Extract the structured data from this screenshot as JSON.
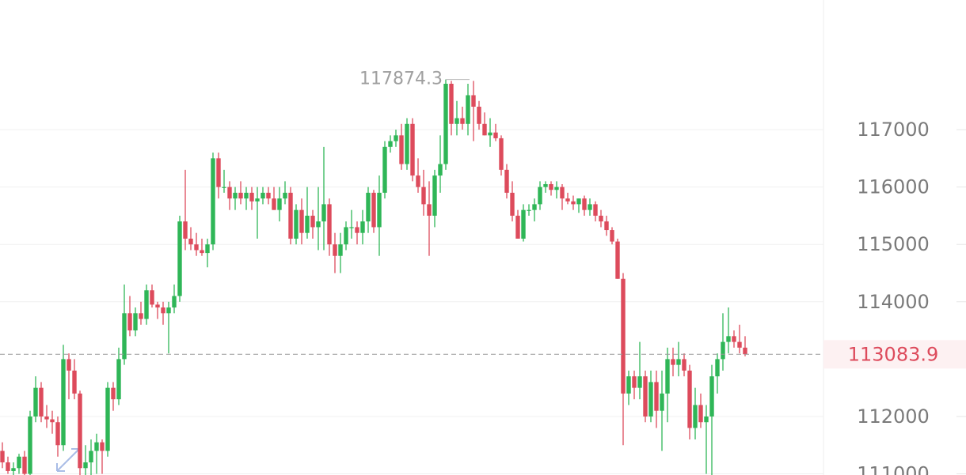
{
  "chart_data": {
    "type": "candlestick",
    "open": [
      111400,
      111200,
      111050,
      111100,
      111300,
      111000,
      112000,
      112500,
      112000,
      111950,
      111900,
      111500,
      113000,
      112800,
      112400,
      111100,
      111200,
      111400,
      111550,
      111400,
      112500,
      112300,
      113000,
      113800,
      113500,
      113800,
      113700,
      114200,
      113950,
      113900,
      113800,
      113900,
      114100,
      115400,
      115100,
      115000,
      114900,
      114850,
      115000,
      116500,
      116000,
      116000,
      115800,
      115900,
      115800,
      115900,
      115750,
      115800,
      115900,
      115800,
      115600,
      115800,
      115900,
      115100,
      115600,
      115200,
      115500,
      115300,
      115400,
      115700,
      115000,
      114800,
      115000,
      115300,
      115300,
      115200,
      115400,
      115900,
      115300,
      115900,
      116700,
      116800,
      116900,
      116400,
      117100,
      116200,
      116000,
      115700,
      115500,
      116200,
      116400,
      117800,
      117100,
      117200,
      117100,
      117600,
      117400,
      117100,
      116900,
      116950,
      116850,
      116300,
      115900,
      115500,
      115100,
      115600,
      115600,
      115700,
      116000,
      116050,
      115950,
      116000,
      115800,
      115750,
      115700,
      115800,
      115600,
      115700,
      115500,
      115400,
      115250,
      115050,
      114400,
      112400,
      112700,
      112500,
      112700,
      112000,
      112600,
      112100,
      112400,
      113000,
      112900,
      113000,
      112800,
      111800,
      112200,
      111900,
      112000,
      112700,
      113000,
      113300,
      113400,
      113300,
      113200
    ],
    "high": [
      111550,
      111300,
      111200,
      111350,
      111400,
      112100,
      112700,
      112600,
      112200,
      112100,
      112000,
      113250,
      113100,
      113000,
      112450,
      111500,
      111600,
      111700,
      111600,
      112600,
      112600,
      113200,
      114300,
      114100,
      113900,
      114000,
      114300,
      114300,
      114000,
      114000,
      114000,
      114300,
      115500,
      116300,
      115300,
      115200,
      115100,
      115100,
      116600,
      116600,
      116300,
      116100,
      116000,
      116100,
      116000,
      116000,
      116000,
      116000,
      116000,
      116000,
      116000,
      116100,
      116000,
      115700,
      115800,
      116000,
      115600,
      116000,
      116700,
      115800,
      115200,
      115200,
      115400,
      115600,
      115400,
      115600,
      116000,
      115950,
      116200,
      116800,
      116900,
      117000,
      117100,
      117200,
      117200,
      116500,
      116300,
      116100,
      116300,
      116900,
      117874.3,
      117850,
      117500,
      117400,
      117800,
      117850,
      117500,
      117300,
      117200,
      117100,
      116900,
      116400,
      116100,
      115600,
      115700,
      115700,
      115800,
      116100,
      116100,
      116100,
      116100,
      116050,
      115900,
      115850,
      115800,
      115850,
      115800,
      115750,
      115600,
      115500,
      115300,
      115100,
      114500,
      112800,
      112800,
      113300,
      112800,
      112800,
      112800,
      112800,
      113200,
      113200,
      113300,
      113100,
      112900,
      112500,
      112400,
      112200,
      112900,
      113100,
      113800,
      113900,
      113500,
      113600,
      113400
    ],
    "low": [
      111100,
      111000,
      110950,
      111000,
      110900,
      110950,
      111900,
      111900,
      111800,
      111700,
      111300,
      111400,
      112300,
      112300,
      110800,
      110900,
      110900,
      111000,
      111000,
      111300,
      112100,
      112200,
      112900,
      113400,
      113400,
      113600,
      113600,
      113900,
      113700,
      113600,
      113100,
      113800,
      114000,
      114900,
      114900,
      114800,
      114800,
      114600,
      114900,
      115800,
      115900,
      115600,
      115600,
      115700,
      115600,
      115600,
      115100,
      115700,
      115700,
      115600,
      115400,
      115700,
      115000,
      115000,
      115000,
      115100,
      115100,
      114900,
      114900,
      114800,
      114500,
      114500,
      114900,
      115100,
      115000,
      115000,
      115200,
      115200,
      114800,
      115800,
      116600,
      116700,
      116300,
      116300,
      116100,
      115900,
      115500,
      114800,
      115300,
      115900,
      116300,
      116900,
      116900,
      117000,
      116900,
      116800,
      117000,
      116900,
      116700,
      116800,
      116200,
      115800,
      115400,
      115100,
      115050,
      115500,
      115400,
      115600,
      115900,
      115850,
      115800,
      115600,
      115700,
      115600,
      115550,
      115500,
      115500,
      115400,
      115300,
      115150,
      115000,
      114400,
      111500,
      112200,
      112300,
      112300,
      111900,
      111900,
      111800,
      111400,
      111900,
      112700,
      112700,
      112700,
      111600,
      111600,
      111800,
      111000,
      110900,
      112400,
      112800,
      113100,
      113200,
      113100,
      113050
    ],
    "close": [
      111200,
      111050,
      111100,
      111300,
      111000,
      112000,
      112500,
      112000,
      111950,
      111900,
      111500,
      113000,
      112800,
      112400,
      111100,
      111200,
      111400,
      111550,
      111400,
      112500,
      112300,
      113000,
      113800,
      113500,
      113800,
      113700,
      114200,
      113950,
      113900,
      113800,
      113900,
      114100,
      115400,
      115100,
      115000,
      114900,
      114850,
      115000,
      116500,
      116000,
      116000,
      115800,
      115900,
      115800,
      115900,
      115750,
      115800,
      115900,
      115800,
      115600,
      115800,
      115900,
      115100,
      115600,
      115200,
      115500,
      115300,
      115400,
      115700,
      115000,
      114800,
      115000,
      115300,
      115300,
      115200,
      115400,
      115900,
      115300,
      115900,
      116700,
      116800,
      116900,
      116400,
      117100,
      116200,
      116000,
      115700,
      115500,
      116200,
      116400,
      117800,
      117100,
      117200,
      117100,
      117600,
      117400,
      117100,
      116900,
      116950,
      116850,
      116300,
      115900,
      115500,
      115100,
      115600,
      115600,
      115700,
      116000,
      116050,
      115950,
      116000,
      115800,
      115750,
      115700,
      115800,
      115600,
      115700,
      115500,
      115400,
      115250,
      115050,
      114400,
      112400,
      112700,
      112500,
      112700,
      112000,
      112600,
      112100,
      112400,
      113000,
      112900,
      113000,
      112800,
      111800,
      112200,
      111900,
      112000,
      112700,
      113000,
      113300,
      113400,
      113300,
      113200,
      113083.9
    ],
    "up_color": "#2fb657",
    "down_color": "#dd4b5c",
    "ylim": [
      110980,
      119260
    ],
    "yticks": [
      111000,
      112000,
      114000,
      115000,
      116000,
      117000
    ],
    "grid": true,
    "last_price": 113083.9,
    "max_marker": 117874.3
  }
}
